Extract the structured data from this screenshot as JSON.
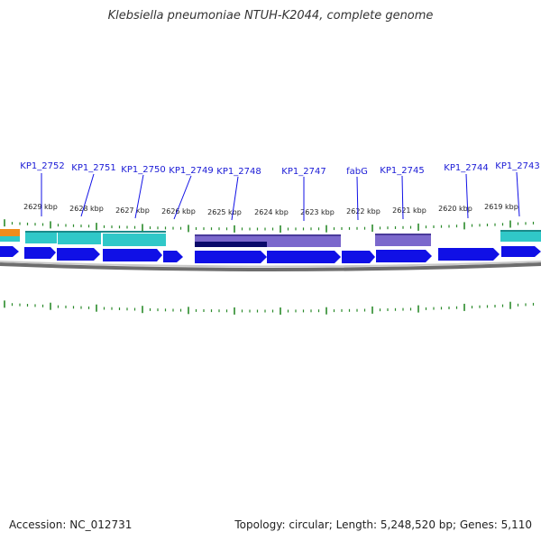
{
  "title": "Klebsiella pneumoniae NTUH-K2044, complete genome",
  "accession": "Accession: NC_012731",
  "summary": "Topology: circular; Length: 5,248,520 bp; Genes: 5,110",
  "colors": {
    "gene_blue": "#1010e6",
    "cds_cyan": "#30c8c8",
    "cds_purple": "#7b68cc",
    "dark_navy": "#0a0a6a",
    "tick_green": "#2a8a2a",
    "orange": "#f08c1c",
    "backbone_gray": "#888888"
  },
  "gene_labels": [
    "KP1_2752",
    "KP1_2751",
    "KP1_2750",
    "KP1_2749",
    "KP1_2748",
    "KP1_2747",
    "fabG",
    "KP1_2745",
    "KP1_2744",
    "KP1_2743"
  ],
  "kbp_labels": [
    "2629 kbp",
    "2628 kbp",
    "2627 kbp",
    "2626 kbp",
    "2625 kbp",
    "2624 kbp",
    "2623 kbp",
    "2622 kbp",
    "2621 kbp",
    "2620 kbp",
    "2619 kbp"
  ]
}
